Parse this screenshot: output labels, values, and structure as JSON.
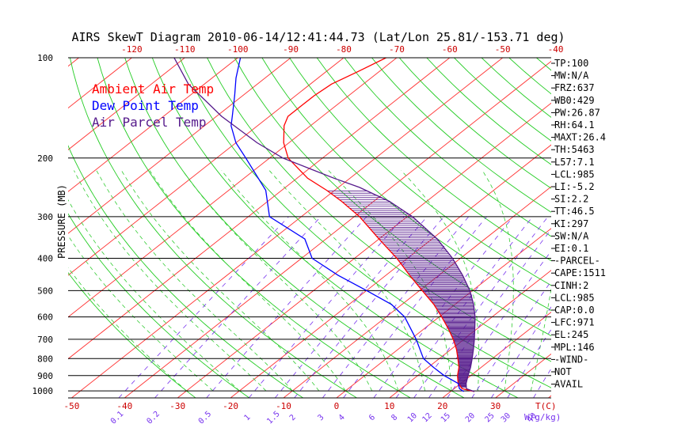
{
  "colors": {
    "background": "#ffffff",
    "frame": "#000000",
    "temp_axis": "#cc0000",
    "isotherm": "#ff3030",
    "dry_adiabat": "#22cc22",
    "moist_adiabat": "#33cc33",
    "mixing_ratio": "#7733ee",
    "ambient_temp": "#ff0000",
    "dew_point": "#0000ff",
    "parcel": "#551a8b",
    "cape_hatch": "#551a8b"
  },
  "chart_data": {
    "type": "line",
    "title": "AIRS SkewT Diagram 2010-06-14/12:41:44.73 (Lat/Lon 25.81/-153.71 deg)",
    "ylabel": "PRESSURE (MB)",
    "xlabel": "T(C)",
    "mixing_ratio_unit": "W(g/kg)",
    "pressure_ticks": [
      100,
      200,
      300,
      400,
      500,
      600,
      700,
      800,
      900,
      1000
    ],
    "pressure_tick_labels": [
      "100",
      "200",
      "300",
      "400",
      "500",
      "600",
      "700",
      "800",
      "900",
      "1000"
    ],
    "top_temp_ticks": [
      -120,
      -110,
      -100,
      -90,
      -80,
      -70,
      -60,
      -50,
      -40
    ],
    "top_temp_labels": [
      "-120",
      "-110",
      "-100",
      "-90",
      "-80",
      "-70",
      "-60",
      "-50",
      "-40"
    ],
    "bottom_temp_ticks": [
      -50,
      -40,
      -30,
      -20,
      -10,
      0,
      10,
      20,
      30
    ],
    "bottom_temp_labels": [
      "-50",
      "-40",
      "-30",
      "-20",
      "-10",
      "0",
      "10",
      "20",
      "30"
    ],
    "mixing_ratio_labels": [
      "0.1",
      "0.2",
      "0.5",
      "1",
      "1.5",
      "2",
      "3",
      "4",
      "6",
      "8",
      "10",
      "12",
      "15",
      "20",
      "25",
      "30",
      "40"
    ],
    "mixing_ratio_values": [
      0.1,
      0.2,
      0.5,
      1,
      1.5,
      2,
      3,
      4,
      6,
      8,
      10,
      12,
      15,
      20,
      25,
      30,
      40
    ],
    "legend": [
      "Ambient Air Temp",
      "Dew Point Temp",
      "Air Parcel Temp"
    ],
    "legend_position": "top-left",
    "series": [
      {
        "name": "Ambient Air Temp",
        "points": [
          {
            "p": 1005,
            "t": 24.5
          },
          {
            "p": 985,
            "t": 21.5
          },
          {
            "p": 950,
            "t": 19.5
          },
          {
            "p": 900,
            "t": 17.5
          },
          {
            "p": 850,
            "t": 15.8
          },
          {
            "p": 800,
            "t": 13.5
          },
          {
            "p": 750,
            "t": 11.0
          },
          {
            "p": 700,
            "t": 8.0
          },
          {
            "p": 650,
            "t": 4.5
          },
          {
            "p": 600,
            "t": 0.5
          },
          {
            "p": 550,
            "t": -4.0
          },
          {
            "p": 500,
            "t": -9.5
          },
          {
            "p": 450,
            "t": -15.5
          },
          {
            "p": 400,
            "t": -22.0
          },
          {
            "p": 350,
            "t": -30.0
          },
          {
            "p": 300,
            "t": -39.0
          },
          {
            "p": 270,
            "t": -46.0
          },
          {
            "p": 250,
            "t": -51.5
          },
          {
            "p": 230,
            "t": -58.0
          },
          {
            "p": 200,
            "t": -66.5
          },
          {
            "p": 180,
            "t": -71.0
          },
          {
            "p": 160,
            "t": -75.0
          },
          {
            "p": 150,
            "t": -76.5
          },
          {
            "p": 140,
            "t": -76.5
          },
          {
            "p": 130,
            "t": -76.5
          },
          {
            "p": 120,
            "t": -76.0
          },
          {
            "p": 110,
            "t": -74.0
          },
          {
            "p": 100,
            "t": -72.0
          }
        ]
      },
      {
        "name": "Dew Point Temp",
        "points": [
          {
            "p": 1005,
            "t": 22.5
          },
          {
            "p": 985,
            "t": 21.0
          },
          {
            "p": 950,
            "t": 19.5
          },
          {
            "p": 900,
            "t": 15.0
          },
          {
            "p": 850,
            "t": 11.0
          },
          {
            "p": 800,
            "t": 7.0
          },
          {
            "p": 700,
            "t": 1.0
          },
          {
            "p": 600,
            "t": -6.5
          },
          {
            "p": 550,
            "t": -12.0
          },
          {
            "p": 500,
            "t": -20.0
          },
          {
            "p": 450,
            "t": -29.0
          },
          {
            "p": 400,
            "t": -38.0
          },
          {
            "p": 350,
            "t": -44.0
          },
          {
            "p": 300,
            "t": -56.0
          },
          {
            "p": 250,
            "t": -63.0
          },
          {
            "p": 200,
            "t": -74.5
          },
          {
            "p": 180,
            "t": -80.0
          },
          {
            "p": 160,
            "t": -85.0
          },
          {
            "p": 150,
            "t": -87.0
          },
          {
            "p": 130,
            "t": -91.5
          },
          {
            "p": 115,
            "t": -95.5
          },
          {
            "p": 100,
            "t": -99.5
          }
        ]
      },
      {
        "name": "Air Parcel Temp",
        "points": [
          {
            "p": 1005,
            "t": 24.5
          },
          {
            "p": 985,
            "t": 22.3
          },
          {
            "p": 950,
            "t": 21.0
          },
          {
            "p": 900,
            "t": 19.5
          },
          {
            "p": 850,
            "t": 18.0
          },
          {
            "p": 800,
            "t": 16.2
          },
          {
            "p": 750,
            "t": 14.2
          },
          {
            "p": 700,
            "t": 12.0
          },
          {
            "p": 650,
            "t": 9.5
          },
          {
            "p": 600,
            "t": 6.8
          },
          {
            "p": 550,
            "t": 3.5
          },
          {
            "p": 500,
            "t": -0.5
          },
          {
            "p": 450,
            "t": -5.5
          },
          {
            "p": 400,
            "t": -11.5
          },
          {
            "p": 350,
            "t": -19.0
          },
          {
            "p": 300,
            "t": -29.0
          },
          {
            "p": 270,
            "t": -37.0
          },
          {
            "p": 245,
            "t": -46.0
          },
          {
            "p": 230,
            "t": -53.0
          },
          {
            "p": 215,
            "t": -60.0
          },
          {
            "p": 200,
            "t": -67.5
          },
          {
            "p": 180,
            "t": -76.0
          },
          {
            "p": 150,
            "t": -89.0
          },
          {
            "p": 120,
            "t": -103.0
          },
          {
            "p": 100,
            "t": -112.0
          }
        ]
      }
    ],
    "axis_range": {
      "p_max": 1050,
      "p_min": 100
    }
  },
  "indices": [
    "TP:100",
    "MW:N/A",
    "FRZ:637",
    "WB0:429",
    "PW:26.87",
    "RH:64.1",
    "MAXT:26.4",
    "TH:5463",
    "L57:7.1",
    "LCL:985",
    "LI:-5.2",
    "SI:2.2",
    "TT:46.5",
    "KI:297",
    "SW:N/A",
    "EI:0.1",
    "-PARCEL-",
    "CAPE:1511",
    "CINH:2",
    "LCL:985",
    "CAP:0.0",
    "LFC:971",
    "EL:245",
    "MPL:146",
    "-WIND-",
    "NOT",
    "AVAIL"
  ]
}
